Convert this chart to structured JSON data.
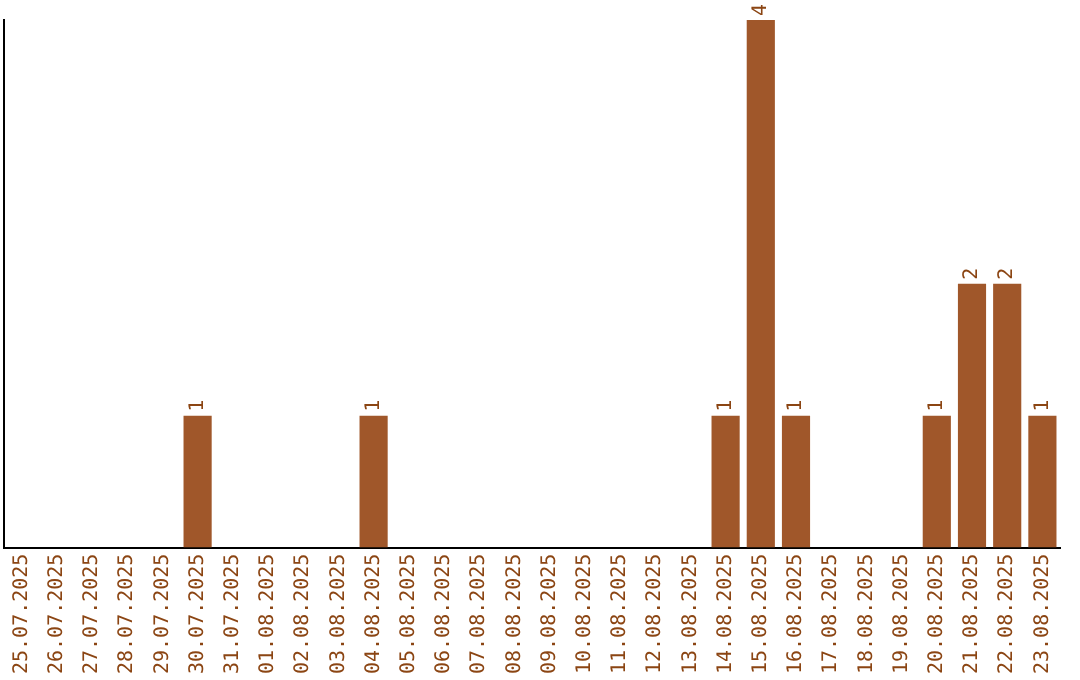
{
  "chart_data": {
    "type": "bar",
    "categories": [
      "25.07.2025",
      "26.07.2025",
      "27.07.2025",
      "28.07.2025",
      "29.07.2025",
      "30.07.2025",
      "31.07.2025",
      "01.08.2025",
      "02.08.2025",
      "03.08.2025",
      "04.08.2025",
      "05.08.2025",
      "06.08.2025",
      "07.08.2025",
      "08.08.2025",
      "09.08.2025",
      "10.08.2025",
      "11.08.2025",
      "12.08.2025",
      "13.08.2025",
      "14.08.2025",
      "15.08.2025",
      "16.08.2025",
      "17.08.2025",
      "18.08.2025",
      "19.08.2025",
      "20.08.2025",
      "21.08.2025",
      "22.08.2025",
      "23.08.2025"
    ],
    "values": [
      0,
      0,
      0,
      0,
      0,
      1,
      0,
      0,
      0,
      0,
      1,
      0,
      0,
      0,
      0,
      0,
      0,
      0,
      0,
      0,
      1,
      4,
      1,
      0,
      0,
      0,
      1,
      2,
      2,
      1
    ],
    "value_labels": [
      null,
      null,
      null,
      null,
      null,
      "1",
      null,
      null,
      null,
      null,
      "1",
      null,
      null,
      null,
      null,
      null,
      null,
      null,
      null,
      null,
      "1",
      "4",
      "1",
      null,
      null,
      null,
      "1",
      "2",
      "2",
      "1"
    ],
    "color": "#a0572a",
    "grid": false,
    "legend": false,
    "tick_labels": "x"
  }
}
